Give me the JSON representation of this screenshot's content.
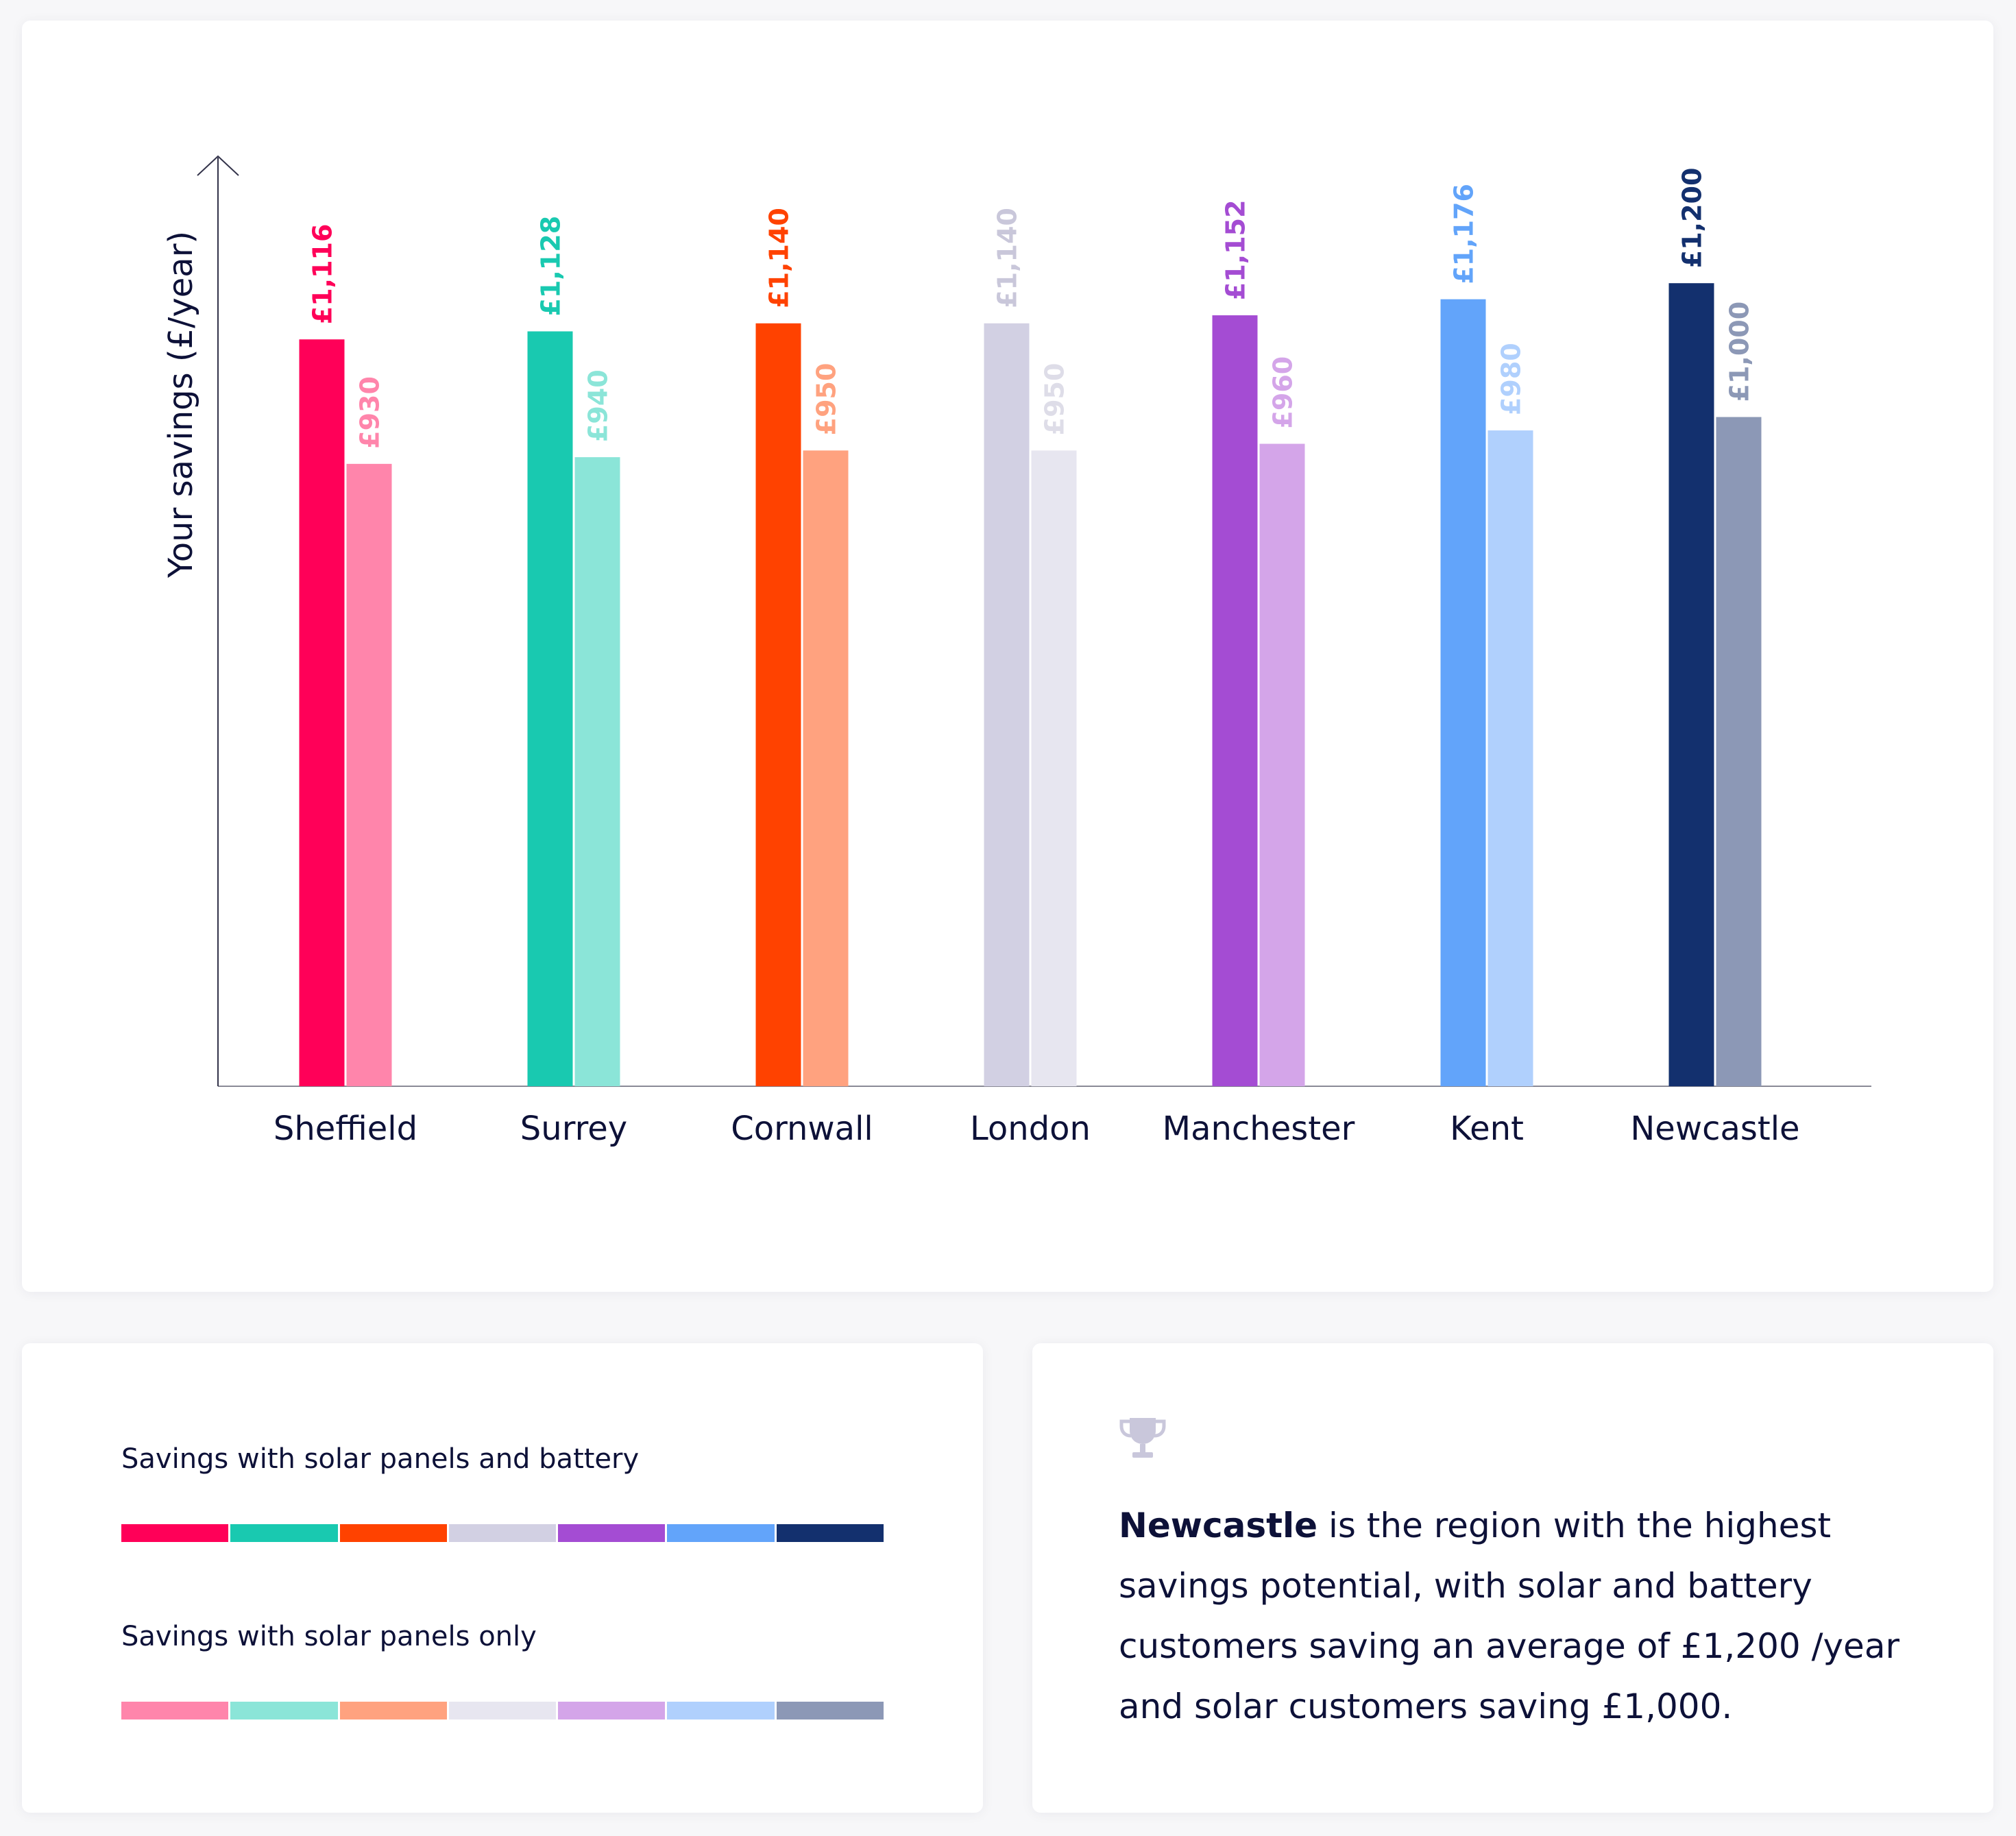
{
  "chart_data": {
    "type": "bar",
    "ylabel": "Your savings (£/year)",
    "xlabel": "",
    "categories": [
      "Sheffield",
      "Surrey",
      "Cornwall",
      "London",
      "Manchester",
      "Kent",
      "Newcastle"
    ],
    "series": [
      {
        "name": "Savings with solar panels and battery",
        "values": [
          1116,
          1128,
          1140,
          1140,
          1152,
          1176,
          1200
        ],
        "labels": [
          "£1,116",
          "£1,128",
          "£1,140",
          "£1,140",
          "£1,152",
          "£1,176",
          "£1,200"
        ],
        "colors": [
          "#ff0058",
          "#19c9b0",
          "#ff4200",
          "#d2d0e3",
          "#a44cd3",
          "#62a4fa",
          "#13306e"
        ],
        "label_colors": [
          "#ff0058",
          "#19c9b0",
          "#ff4200",
          "#c9c7da",
          "#a44cd3",
          "#62a4fa",
          "#13306e"
        ]
      },
      {
        "name": "Savings with solar panels only",
        "values": [
          930,
          940,
          950,
          950,
          960,
          980,
          1000
        ],
        "labels": [
          "£930",
          "£940",
          "£950",
          "£950",
          "£960",
          "£980",
          "£1,000"
        ],
        "colors": [
          "#ff85ab",
          "#8be5d8",
          "#ffa27f",
          "#e7e6f0",
          "#d4a5e9",
          "#b0d0fd",
          "#8c98b6"
        ],
        "label_colors": [
          "#ff85ab",
          "#8be5d8",
          "#ffa27f",
          "#dedde8",
          "#d4a5e9",
          "#b0d0fd",
          "#8c98b6"
        ]
      }
    ],
    "ylim": [
      0,
      1300
    ],
    "grid": false,
    "legend_placement": "bottom-left"
  },
  "legend": {
    "battery_title": "Savings with solar panels and battery",
    "panels_title": "Savings with solar panels only"
  },
  "callout": {
    "icon": "trophy-icon",
    "region": "Newcastle",
    "text": " is the region with the highest savings potential, with solar and battery customers saving an average of £1,200 /year and solar customers saving £1,000."
  }
}
